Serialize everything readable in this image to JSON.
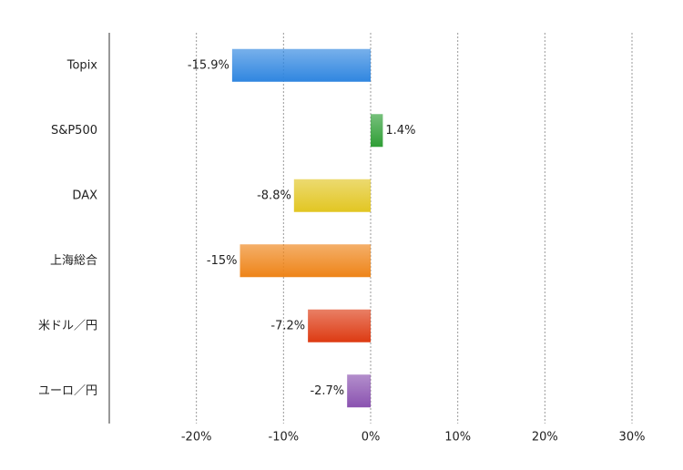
{
  "chart_data": {
    "type": "bar",
    "orientation": "horizontal",
    "categories": [
      "Topix",
      "S&P500",
      "DAX",
      "上海総合",
      "米ドル／円",
      "ユーロ／円"
    ],
    "values": [
      -15.9,
      1.4,
      -8.8,
      -15,
      -7.2,
      -2.7
    ],
    "value_labels": [
      "-15.9%",
      "1.4%",
      "-8.8%",
      "-15%",
      "-7.2%",
      "-2.7%"
    ],
    "colors": [
      "#2f86e0",
      "#2e9e35",
      "#e2c622",
      "#ee8418",
      "#dd3a12",
      "#8a52b0"
    ],
    "xlim": [
      -30,
      30
    ],
    "xticks": [
      {
        "value": -20,
        "label": "-20%"
      },
      {
        "value": -10,
        "label": "-10%"
      },
      {
        "value": 0,
        "label": "0%"
      },
      {
        "value": 10,
        "label": "10%"
      },
      {
        "value": 20,
        "label": "20%"
      },
      {
        "value": 30,
        "label": "30%"
      }
    ],
    "grid": true
  }
}
